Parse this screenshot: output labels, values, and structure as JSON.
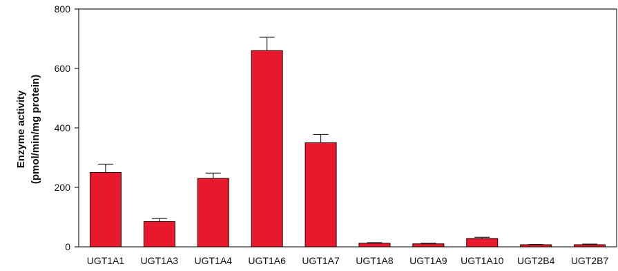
{
  "chart_data": {
    "type": "bar",
    "title": "",
    "xlabel": "",
    "ylabel": "Enzyme activity",
    "ylabel_line2": "(pmol/min/mg protein)",
    "ylim": [
      0,
      800
    ],
    "yticks": [
      "0",
      "200",
      "400",
      "600",
      "800"
    ],
    "grid": false,
    "legend": "none",
    "bar_color": "#e8192c",
    "categories": [
      "UGT1A1",
      "UGT1A3",
      "UGT1A4",
      "UGT1A6",
      "UGT1A7",
      "UGT1A8",
      "UGT1A9",
      "UGT1A10",
      "UGT2B4",
      "UGT2B7"
    ],
    "values": [
      250,
      85,
      230,
      660,
      350,
      12,
      10,
      28,
      7,
      7
    ],
    "error_upper": [
      28,
      10,
      18,
      45,
      28,
      2,
      2,
      4,
      1,
      2
    ]
  }
}
